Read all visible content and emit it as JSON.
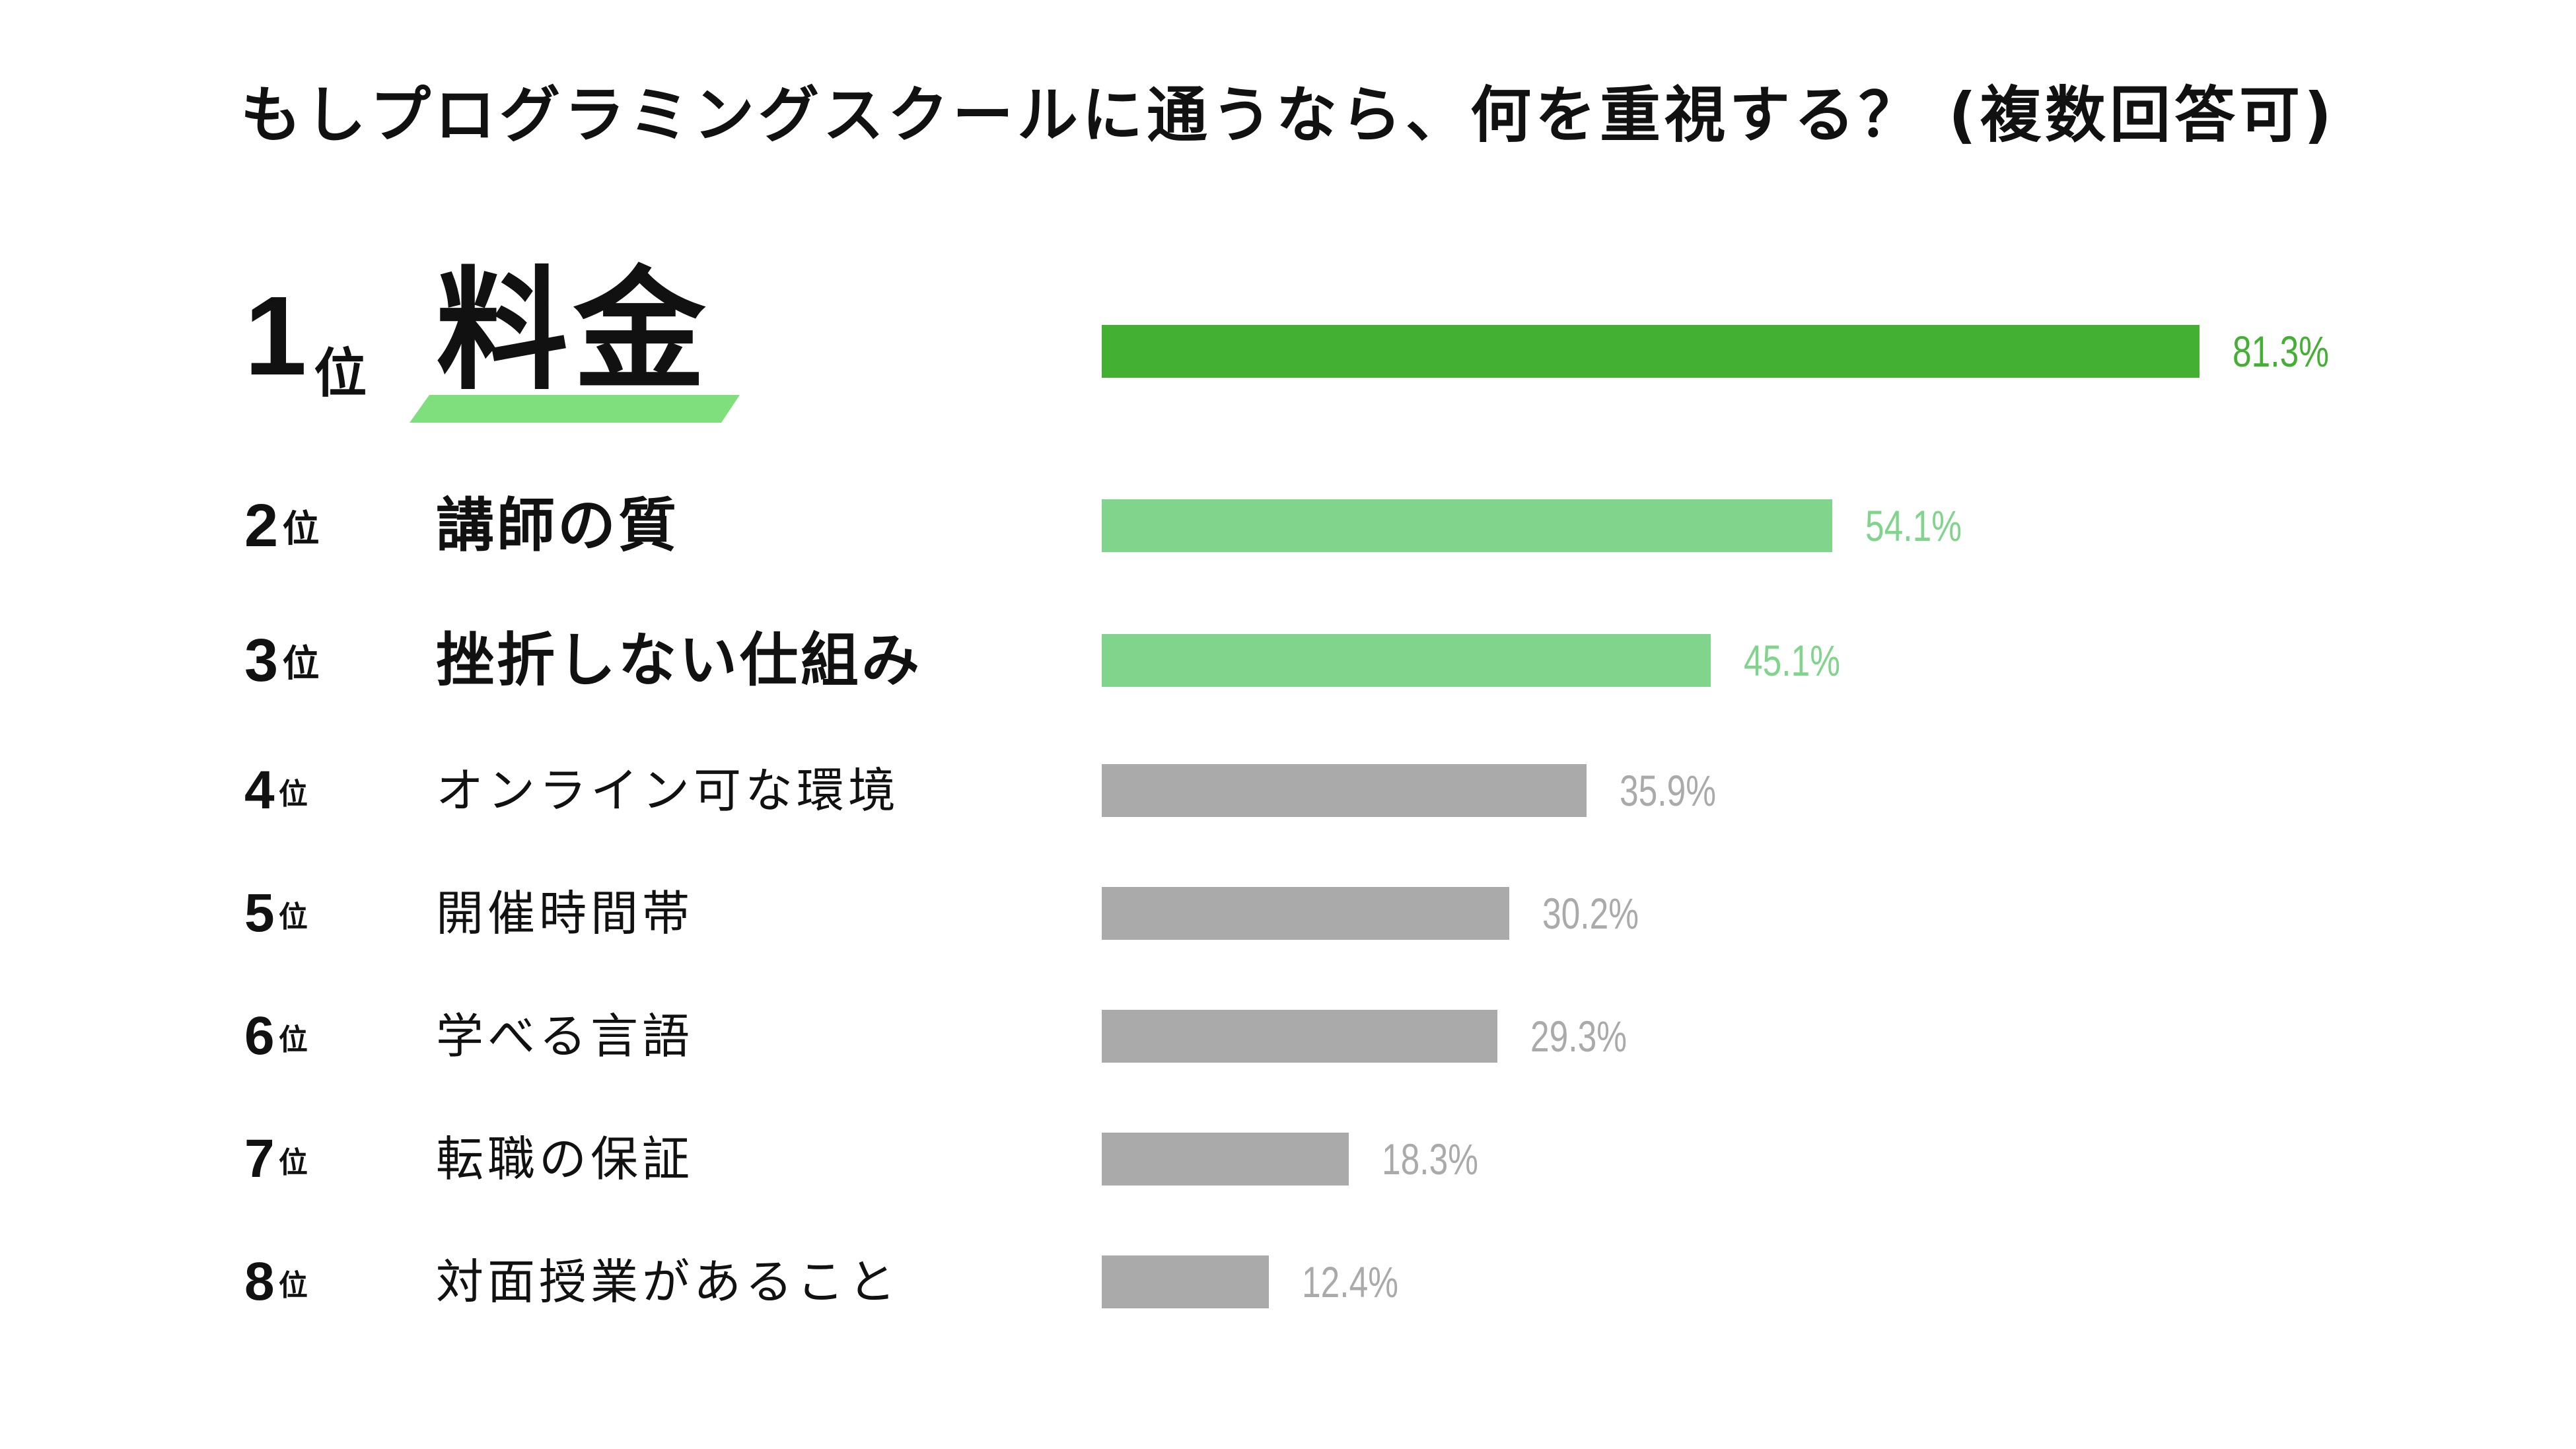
{
  "title": "もしプログラミングスクールに通うなら、何を重視する？ (複数回答可)",
  "rank_suffix": "位",
  "colors": {
    "top": "#43b034",
    "second_tier": "#80d48c",
    "rest": "#aaaaaa",
    "underline": "#80df7d",
    "text": "#111111"
  },
  "chart_data": {
    "type": "bar",
    "orientation": "horizontal",
    "title": "もしプログラミングスクールに通うなら、何を重視する？ (複数回答可)",
    "xlabel": "",
    "ylabel": "",
    "unit": "%",
    "grid": false,
    "legend": "none",
    "xlim": [
      0,
      100
    ],
    "categories": [
      "料金",
      "講師の質",
      "挫折しない仕組み",
      "オンライン可な環境",
      "開催時間帯",
      "学べる言語",
      "転職の保証",
      "対面授業があること"
    ],
    "ranks": [
      "1",
      "2",
      "3",
      "4",
      "5",
      "6",
      "7",
      "8"
    ],
    "values": [
      81.3,
      54.1,
      45.1,
      35.9,
      30.2,
      29.3,
      18.3,
      12.4
    ],
    "value_labels": [
      "81.3%",
      "54.1%",
      "45.1%",
      "35.9%",
      "30.2%",
      "29.3%",
      "18.3%",
      "12.4%"
    ]
  }
}
